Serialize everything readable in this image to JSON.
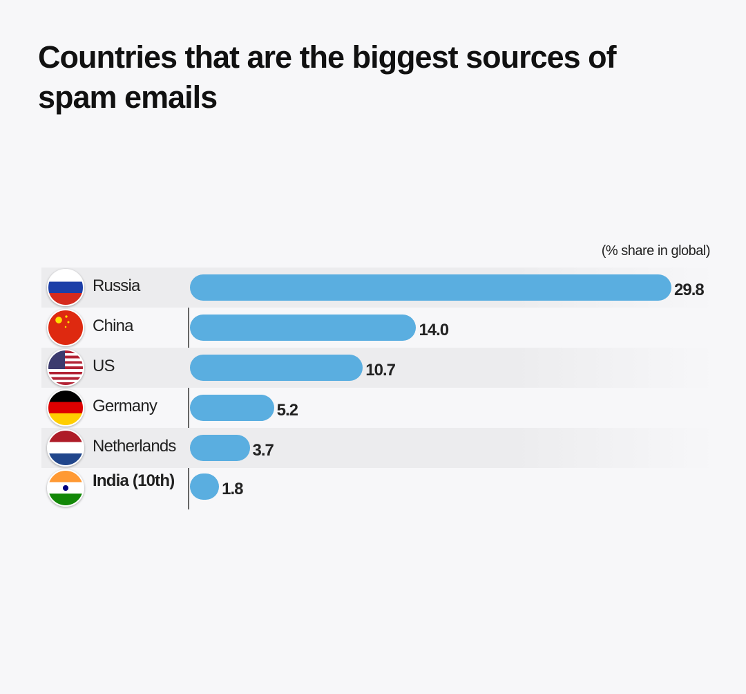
{
  "chart_data": {
    "type": "bar",
    "orientation": "horizontal",
    "title": "Countries that are the biggest sources of spam emails",
    "unit_label": "(% share in global)",
    "categories": [
      "Russia",
      "China",
      "US",
      "Germany",
      "Netherlands",
      "India (10th)"
    ],
    "values": [
      29.8,
      14.0,
      10.7,
      5.2,
      3.7,
      1.8
    ],
    "value_labels": [
      "29.8",
      "14.0",
      "10.7",
      "5.2",
      "3.7",
      "1.8"
    ],
    "flags": [
      "russia-flag-icon",
      "china-flag-icon",
      "us-flag-icon",
      "germany-flag-icon",
      "netherlands-flag-icon",
      "india-flag-icon"
    ],
    "highlight": "India (10th)",
    "bar_color": "#5aaee0",
    "xlim": [
      0,
      29.8
    ],
    "grid": false
  }
}
